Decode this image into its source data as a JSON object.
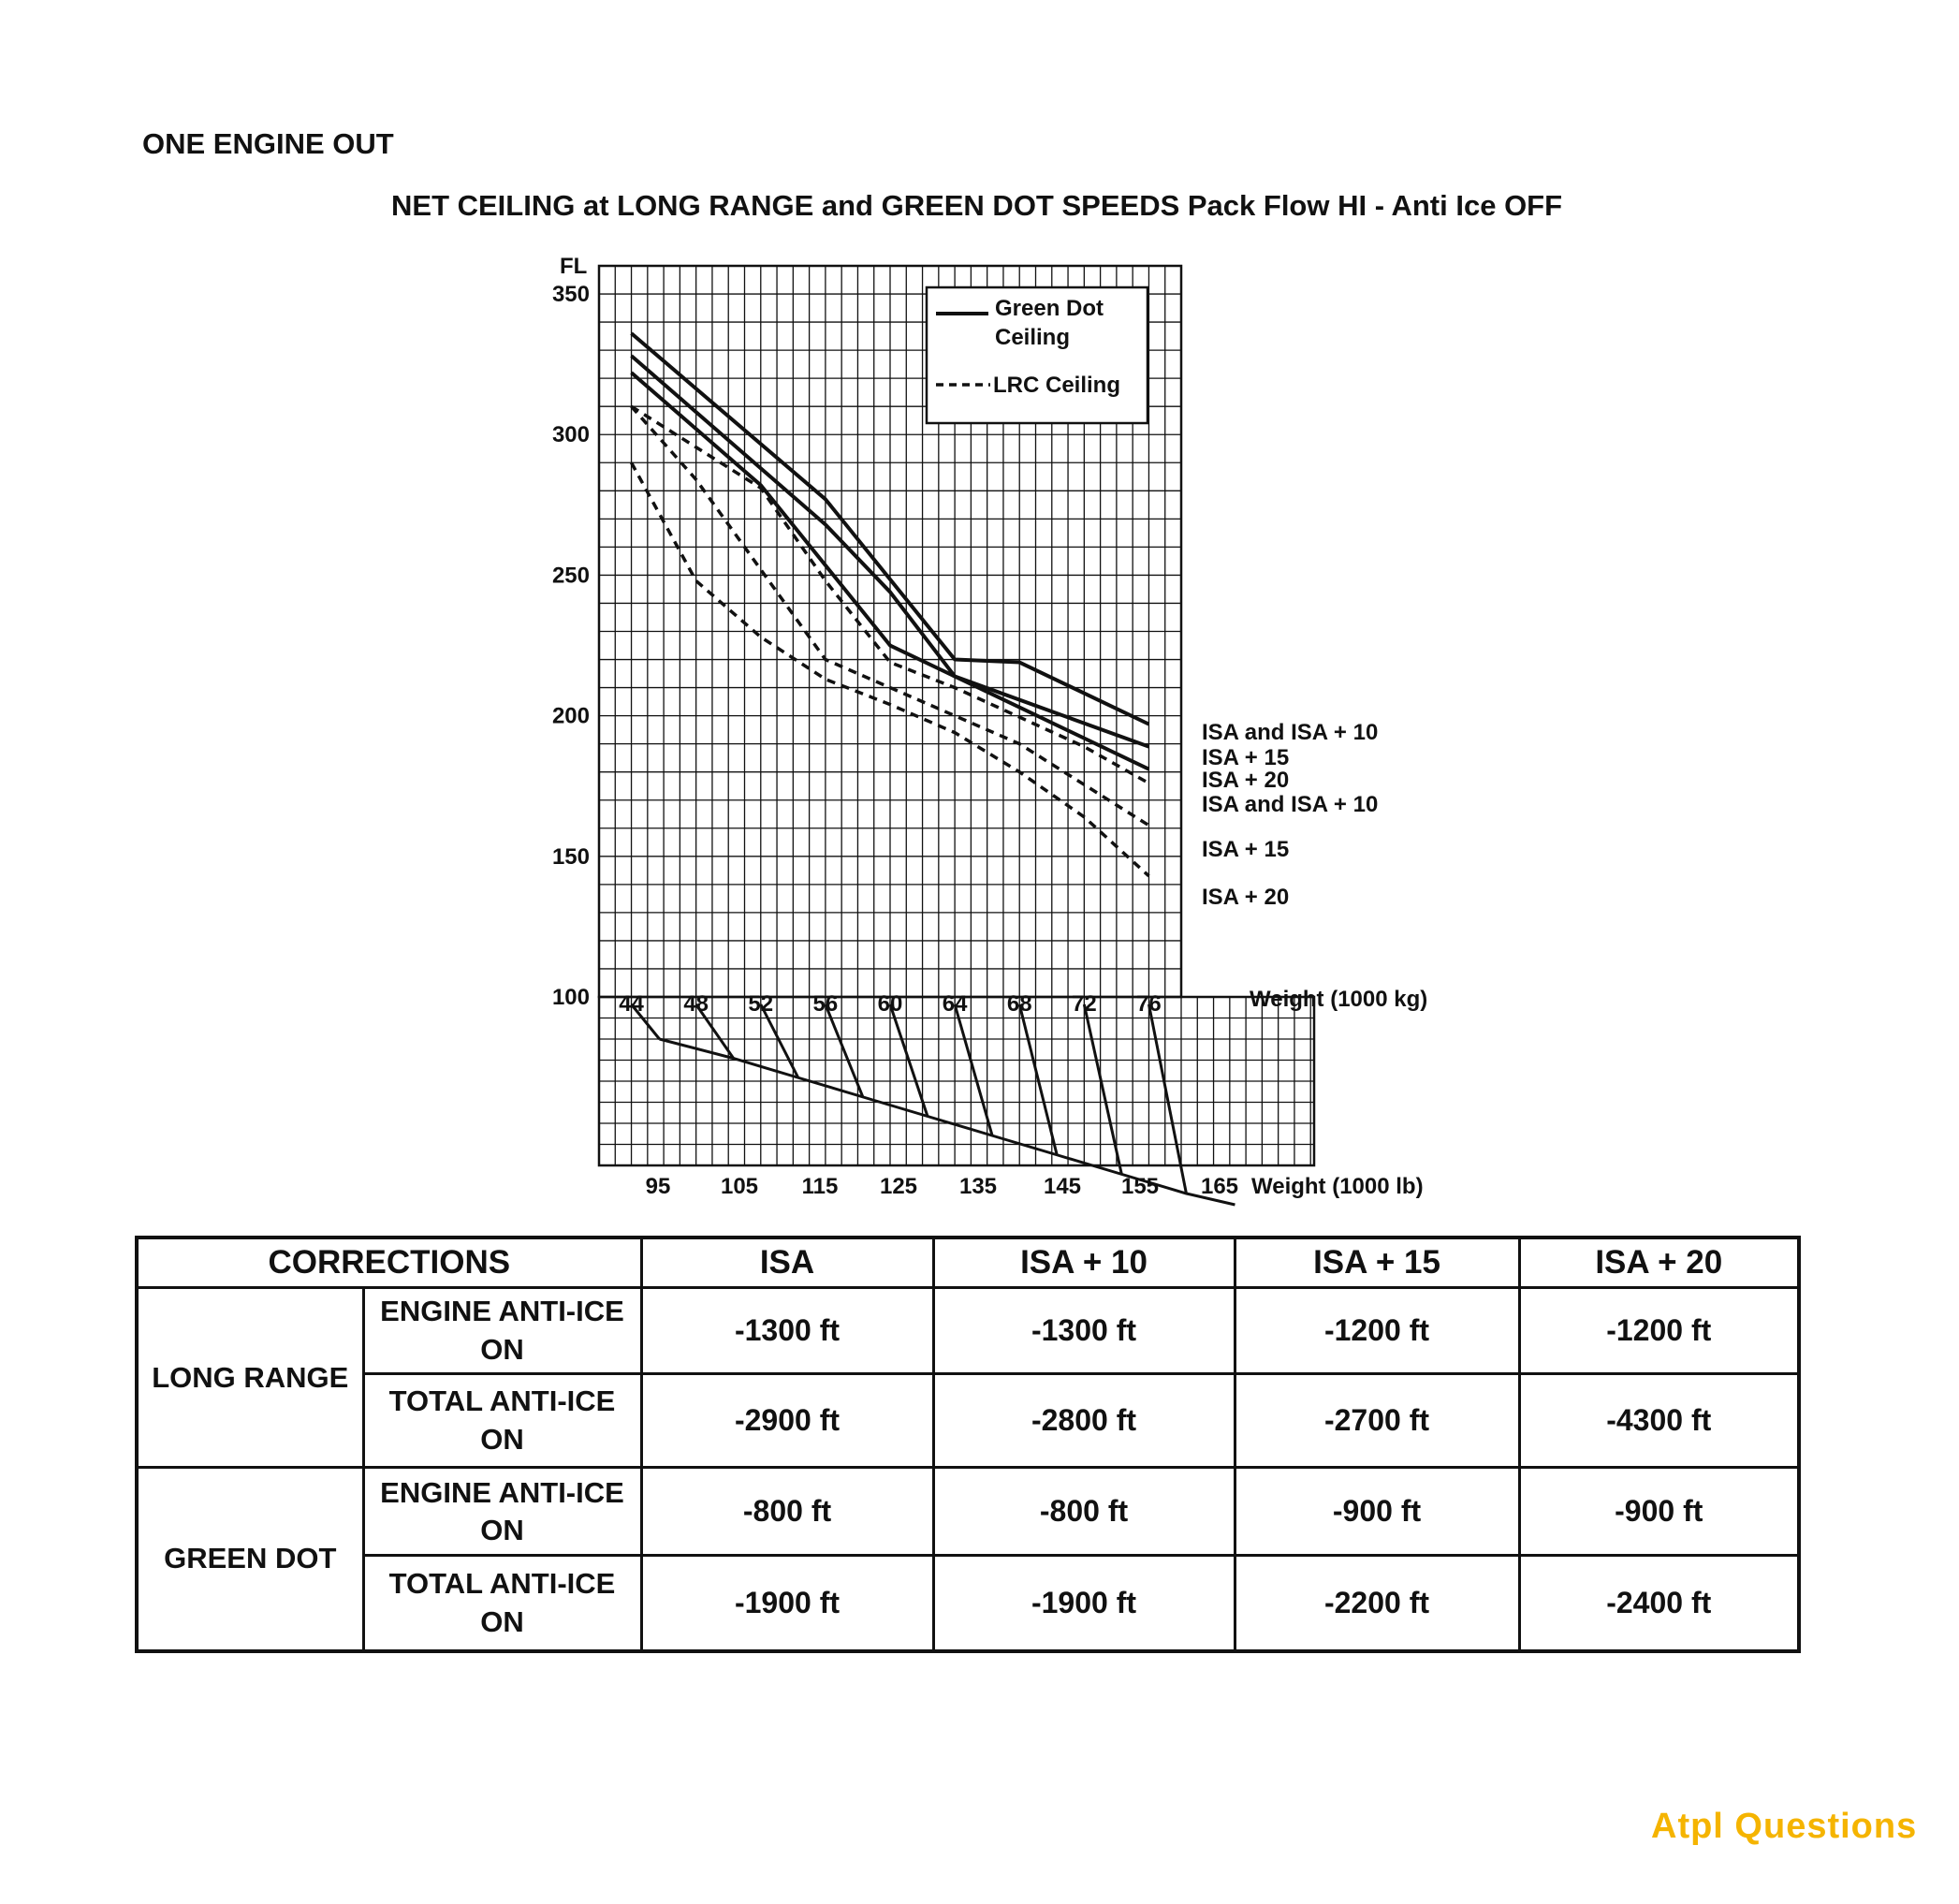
{
  "page_heading": "ONE ENGINE OUT",
  "chart_title": "NET CEILING at LONG RANGE and GREEN DOT SPEEDS Pack Flow HI - Anti Ice OFF",
  "chart_data": {
    "type": "line",
    "title": "NET CEILING at LONG RANGE and GREEN DOT SPEEDS Pack Flow HI - Anti Ice OFF",
    "ylabel": "FL",
    "y_ticks": [
      "350",
      "300",
      "250",
      "200",
      "150",
      "100"
    ],
    "ylim": [
      100,
      360
    ],
    "x_top_label": "Weight (1000 kg)",
    "x_top_ticks": [
      "44",
      "48",
      "52",
      "56",
      "60",
      "64",
      "68",
      "72",
      "76"
    ],
    "x_bottom_label": "Weight (1000 lb)",
    "x_bottom_ticks": [
      "95",
      "105",
      "115",
      "125",
      "135",
      "145",
      "155",
      "165"
    ],
    "xlim": [
      42,
      78
    ],
    "legend": {
      "placement": "top-right",
      "green_dot": "Green Dot Ceiling",
      "lrc": "LRC Ceiling"
    },
    "series": [
      {
        "name": "ISA and ISA + 10",
        "group": "green_dot",
        "style": "solid",
        "x": [
          44,
          56,
          64,
          68,
          76
        ],
        "y": [
          336,
          277,
          220,
          219,
          197
        ]
      },
      {
        "name": "ISA + 15",
        "group": "green_dot",
        "style": "solid",
        "x": [
          44,
          56,
          60,
          64,
          76
        ],
        "y": [
          328,
          268,
          244,
          214,
          189
        ]
      },
      {
        "name": "ISA + 20",
        "group": "green_dot",
        "style": "solid",
        "x": [
          44,
          52,
          60,
          64,
          76
        ],
        "y": [
          322,
          282,
          225,
          214,
          181
        ]
      },
      {
        "name": "ISA and ISA + 10",
        "group": "lrc",
        "style": "dashed",
        "x": [
          44,
          52,
          56,
          60,
          64,
          72,
          76
        ],
        "y": [
          310,
          281,
          248,
          219,
          210,
          189,
          176
        ]
      },
      {
        "name": "ISA + 15",
        "group": "lrc",
        "style": "dashed",
        "x": [
          44,
          48,
          52,
          56,
          60,
          64,
          68,
          76
        ],
        "y": [
          310,
          284,
          252,
          220,
          210,
          200,
          190,
          161
        ]
      },
      {
        "name": "ISA + 20",
        "group": "lrc",
        "style": "dashed",
        "x": [
          44,
          48,
          52,
          56,
          60,
          64,
          68,
          72,
          76
        ],
        "y": [
          290,
          248,
          228,
          213,
          204,
          194,
          180,
          164,
          143
        ]
      }
    ],
    "conversion_note_labels": []
  },
  "corrections_table": {
    "header": [
      "CORRECTIONS",
      "ISA",
      "ISA + 10",
      "ISA + 15",
      "ISA + 20"
    ],
    "groups": [
      {
        "name": "LONG RANGE",
        "rows": [
          {
            "label": "ENGINE ANTI-ICE ON",
            "values": [
              "-1300 ft",
              "-1300 ft",
              "-1200 ft",
              "-1200 ft"
            ]
          },
          {
            "label": "TOTAL ANTI-ICE ON",
            "values": [
              "-2900 ft",
              "-2800 ft",
              "-2700 ft",
              "-4300 ft"
            ]
          }
        ]
      },
      {
        "name": "GREEN DOT",
        "rows": [
          {
            "label": "ENGINE ANTI-ICE ON",
            "values": [
              "-800 ft",
              "-800 ft",
              "-900 ft",
              "-900 ft"
            ]
          },
          {
            "label": "TOTAL ANTI-ICE ON",
            "values": [
              "-1900 ft",
              "-1900 ft",
              "-2200 ft",
              "-2400 ft"
            ]
          }
        ]
      }
    ]
  },
  "watermark": "Atpl Questions",
  "colors": {
    "ink": "#111111",
    "logo": "#f5b400"
  }
}
